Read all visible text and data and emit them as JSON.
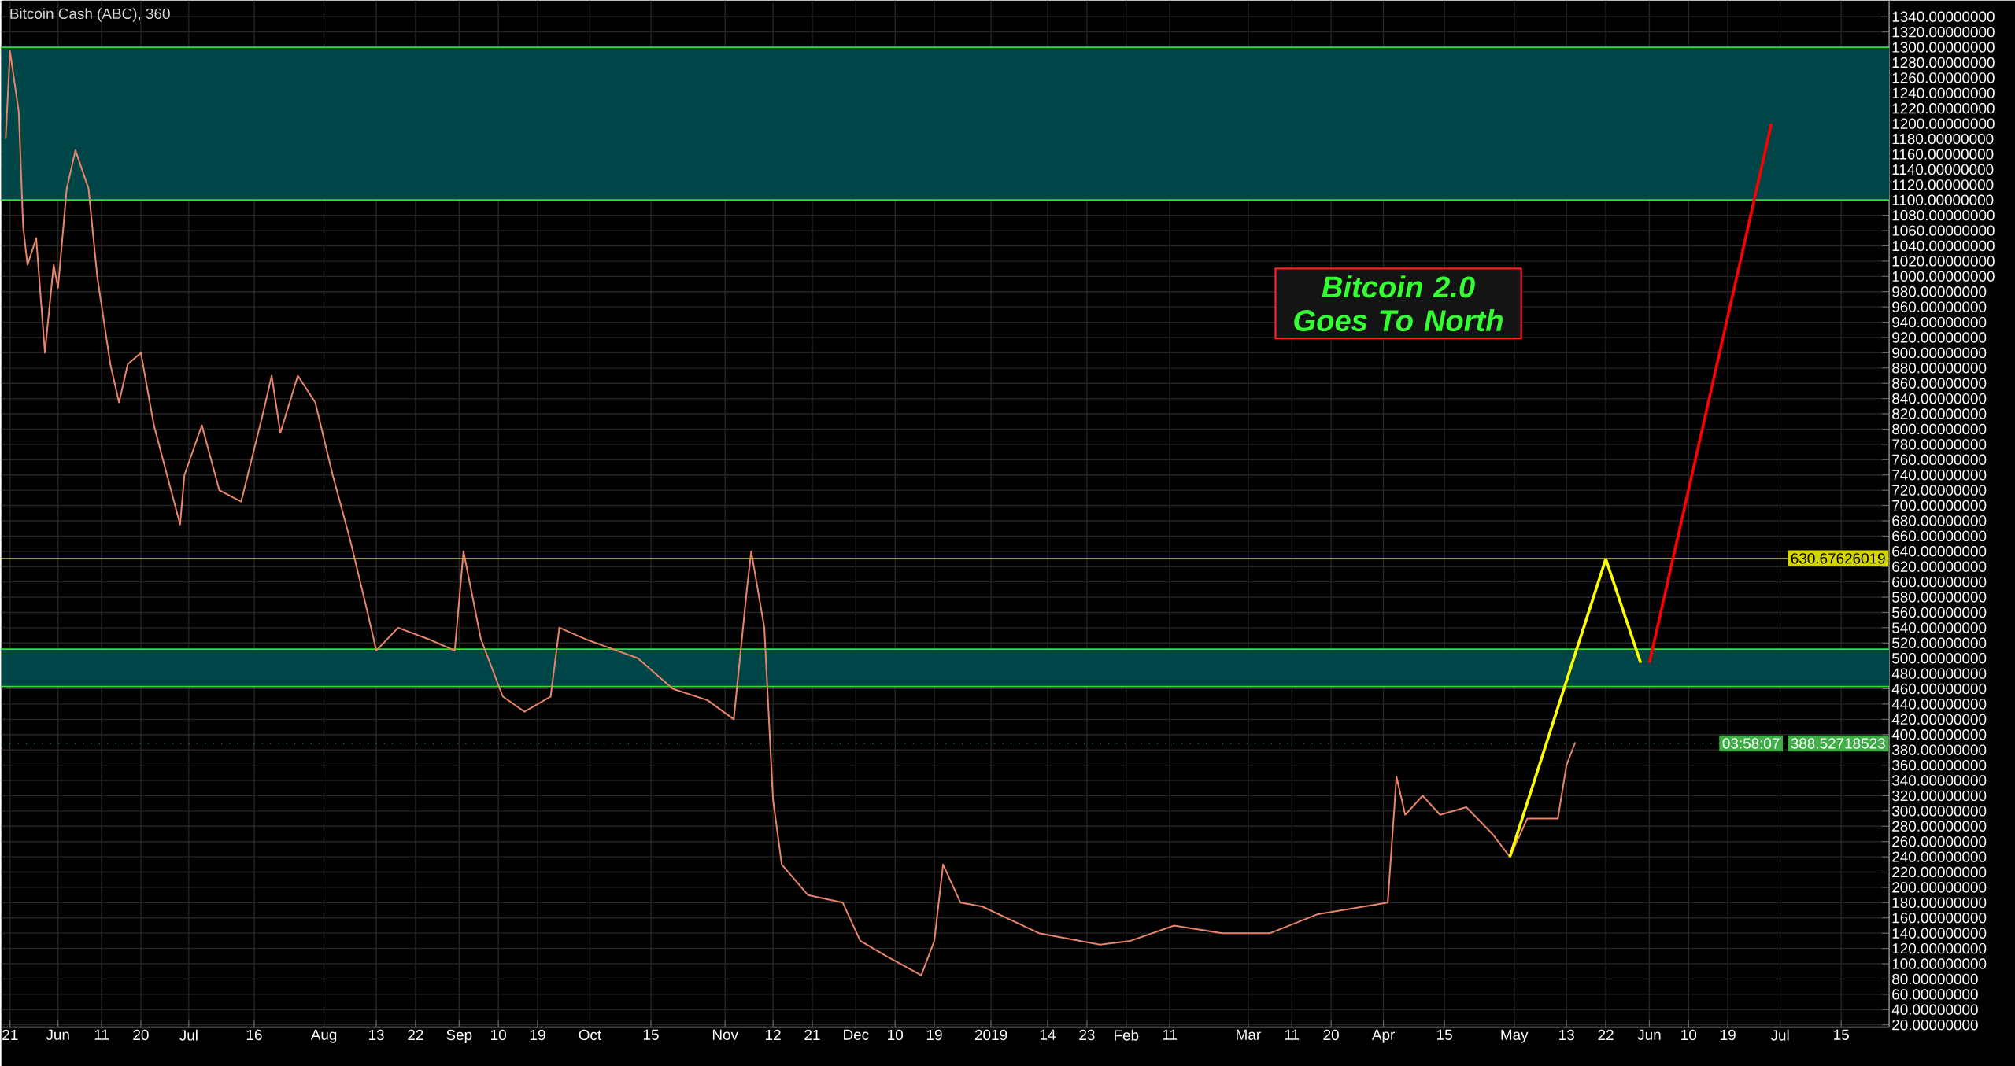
{
  "chart_data": {
    "type": "line",
    "title": "Bitcoin Cash (ABC), 360",
    "annotations": [
      "Bitcoin 2.0 Goes To North",
      "03:58:07"
    ],
    "xlim": [
      "2018-05-19",
      "2019-07-26"
    ],
    "ylim": [
      17,
      1361
    ],
    "xticks": [
      {
        "value": "2018-05-21",
        "label": "21"
      },
      {
        "value": "2018-06-01",
        "label": "Jun"
      },
      {
        "value": "2018-06-11",
        "label": "11"
      },
      {
        "value": "2018-06-20",
        "label": "20"
      },
      {
        "value": "2018-07-01",
        "label": "Jul"
      },
      {
        "value": "2018-07-16",
        "label": "16"
      },
      {
        "value": "2018-08-01",
        "label": "Aug"
      },
      {
        "value": "2018-08-13",
        "label": "13"
      },
      {
        "value": "2018-08-22",
        "label": "22"
      },
      {
        "value": "2018-09-01",
        "label": "Sep"
      },
      {
        "value": "2018-09-10",
        "label": "10"
      },
      {
        "value": "2018-09-19",
        "label": "19"
      },
      {
        "value": "2018-10-01",
        "label": "Oct"
      },
      {
        "value": "2018-10-15",
        "label": "15"
      },
      {
        "value": "2018-11-01",
        "label": "Nov"
      },
      {
        "value": "2018-11-12",
        "label": "12"
      },
      {
        "value": "2018-11-21",
        "label": "21"
      },
      {
        "value": "2018-12-01",
        "label": "Dec"
      },
      {
        "value": "2018-12-10",
        "label": "10"
      },
      {
        "value": "2018-12-19",
        "label": "19"
      },
      {
        "value": "2019-01-01",
        "label": "2019"
      },
      {
        "value": "2019-01-14",
        "label": "14"
      },
      {
        "value": "2019-01-23",
        "label": "23"
      },
      {
        "value": "2019-02-01",
        "label": "Feb"
      },
      {
        "value": "2019-02-11",
        "label": "11"
      },
      {
        "value": "2019-03-01",
        "label": "Mar"
      },
      {
        "value": "2019-03-11",
        "label": "11"
      },
      {
        "value": "2019-03-20",
        "label": "20"
      },
      {
        "value": "2019-04-01",
        "label": "Apr"
      },
      {
        "value": "2019-04-15",
        "label": "15"
      },
      {
        "value": "2019-05-01",
        "label": "May"
      },
      {
        "value": "2019-05-13",
        "label": "13"
      },
      {
        "value": "2019-05-22",
        "label": "22"
      },
      {
        "value": "2019-06-01",
        "label": "Jun"
      },
      {
        "value": "2019-06-10",
        "label": "10"
      },
      {
        "value": "2019-06-19",
        "label": "19"
      },
      {
        "value": "2019-07-01",
        "label": "Jul"
      },
      {
        "value": "2019-07-15",
        "label": "15"
      }
    ],
    "yticks": [
      {
        "value": 20,
        "label": "20.00000000"
      },
      {
        "value": 40,
        "label": "40.00000000"
      },
      {
        "value": 60,
        "label": "60.00000000"
      },
      {
        "value": 80,
        "label": "80.00000000"
      },
      {
        "value": 100,
        "label": "100.00000000"
      },
      {
        "value": 120,
        "label": "120.00000000"
      },
      {
        "value": 140,
        "label": "140.00000000"
      },
      {
        "value": 160,
        "label": "160.00000000"
      },
      {
        "value": 180,
        "label": "180.00000000"
      },
      {
        "value": 200,
        "label": "200.00000000"
      },
      {
        "value": 220,
        "label": "220.00000000"
      },
      {
        "value": 240,
        "label": "240.00000000"
      },
      {
        "value": 260,
        "label": "260.00000000"
      },
      {
        "value": 280,
        "label": "280.00000000"
      },
      {
        "value": 300,
        "label": "300.00000000"
      },
      {
        "value": 320,
        "label": "320.00000000"
      },
      {
        "value": 340,
        "label": "340.00000000"
      },
      {
        "value": 360,
        "label": "360.00000000"
      },
      {
        "value": 380,
        "label": "380.00000000"
      },
      {
        "value": 400,
        "label": "400.00000000"
      },
      {
        "value": 420,
        "label": "420.00000000"
      },
      {
        "value": 440,
        "label": "440.00000000"
      },
      {
        "value": 460,
        "label": "460.00000000"
      },
      {
        "value": 480,
        "label": "480.00000000"
      },
      {
        "value": 500,
        "label": "500.00000000"
      },
      {
        "value": 520,
        "label": "520.00000000"
      },
      {
        "value": 540,
        "label": "540.00000000"
      },
      {
        "value": 560,
        "label": "560.00000000"
      },
      {
        "value": 580,
        "label": "580.00000000"
      },
      {
        "value": 600,
        "label": "600.00000000"
      },
      {
        "value": 620,
        "label": "620.00000000"
      },
      {
        "value": 640,
        "label": "640.00000000"
      },
      {
        "value": 660,
        "label": "660.00000000"
      },
      {
        "value": 680,
        "label": "680.00000000"
      },
      {
        "value": 700,
        "label": "700.00000000"
      },
      {
        "value": 720,
        "label": "720.00000000"
      },
      {
        "value": 740,
        "label": "740.00000000"
      },
      {
        "value": 760,
        "label": "760.00000000"
      },
      {
        "value": 780,
        "label": "780.00000000"
      },
      {
        "value": 800,
        "label": "800.00000000"
      },
      {
        "value": 820,
        "label": "820.00000000"
      },
      {
        "value": 840,
        "label": "840.00000000"
      },
      {
        "value": 860,
        "label": "860.00000000"
      },
      {
        "value": 880,
        "label": "880.00000000"
      },
      {
        "value": 900,
        "label": "900.00000000"
      },
      {
        "value": 920,
        "label": "920.00000000"
      },
      {
        "value": 940,
        "label": "940.00000000"
      },
      {
        "value": 960,
        "label": "960.00000000"
      },
      {
        "value": 980,
        "label": "980.00000000"
      },
      {
        "value": 1000,
        "label": "1000.00000000"
      },
      {
        "value": 1020,
        "label": "1020.00000000"
      },
      {
        "value": 1040,
        "label": "1040.00000000"
      },
      {
        "value": 1060,
        "label": "1060.00000000"
      },
      {
        "value": 1080,
        "label": "1080.00000000"
      },
      {
        "value": 1100,
        "label": "1100.00000000"
      },
      {
        "value": 1120,
        "label": "1120.00000000"
      },
      {
        "value": 1140,
        "label": "1140.00000000"
      },
      {
        "value": 1160,
        "label": "1160.00000000"
      },
      {
        "value": 1180,
        "label": "1180.00000000"
      },
      {
        "value": 1200,
        "label": "1200.00000000"
      },
      {
        "value": 1220,
        "label": "1220.00000000"
      },
      {
        "value": 1240,
        "label": "1240.00000000"
      },
      {
        "value": 1260,
        "label": "1260.00000000"
      },
      {
        "value": 1280,
        "label": "1280.00000000"
      },
      {
        "value": 1300,
        "label": "1300.00000000"
      },
      {
        "value": 1320,
        "label": "1320.00000000"
      },
      {
        "value": 1340,
        "label": "1340.00000000"
      }
    ],
    "grid": true,
    "bands": [
      {
        "axis": "y",
        "from": 1100,
        "to": 1300,
        "color": "#004548"
      },
      {
        "axis": "y",
        "from": 463,
        "to": 512,
        "color": "#004548"
      }
    ],
    "ref_lines": [
      {
        "axis": "y",
        "value": 630.67626019,
        "label": "630.67626019",
        "color": "#d4d400"
      },
      {
        "axis": "y",
        "value": 388.52718523,
        "label": "388.52718523",
        "color": "#3fae49",
        "line_style": "dotted"
      }
    ],
    "series": [
      {
        "color": "#e8846a",
        "x": [
          "2018-05-20",
          "2018-05-21",
          "2018-05-23",
          "2018-05-24",
          "2018-05-25",
          "2018-05-27",
          "2018-05-29",
          "2018-05-31",
          "2018-06-01",
          "2018-06-03",
          "2018-06-05",
          "2018-06-08",
          "2018-06-10",
          "2018-06-13",
          "2018-06-15",
          "2018-06-17",
          "2018-06-20",
          "2018-06-23",
          "2018-06-26",
          "2018-06-29",
          "2018-06-30",
          "2018-07-04",
          "2018-07-08",
          "2018-07-13",
          "2018-07-18",
          "2018-07-20",
          "2018-07-22",
          "2018-07-26",
          "2018-07-30",
          "2018-08-03",
          "2018-08-07",
          "2018-08-11",
          "2018-08-13",
          "2018-08-18",
          "2018-08-25",
          "2018-08-31",
          "2018-09-02",
          "2018-09-06",
          "2018-09-11",
          "2018-09-16",
          "2018-09-22",
          "2018-09-24",
          "2018-09-30",
          "2018-10-12",
          "2018-10-20",
          "2018-10-28",
          "2018-11-03",
          "2018-11-06",
          "2018-11-07",
          "2018-11-10",
          "2018-11-12",
          "2018-11-14",
          "2018-11-20",
          "2018-11-28",
          "2018-12-02",
          "2018-12-08",
          "2018-12-16",
          "2018-12-19",
          "2018-12-21",
          "2018-12-25",
          "2018-12-30",
          "2019-01-12",
          "2019-01-26",
          "2019-02-02",
          "2019-02-12",
          "2019-02-23",
          "2019-03-06",
          "2019-03-17",
          "2019-04-02",
          "2019-04-04",
          "2019-04-06",
          "2019-04-10",
          "2019-04-14",
          "2019-04-20",
          "2019-04-26",
          "2019-04-30",
          "2019-05-04",
          "2019-05-11",
          "2019-05-13",
          "2019-05-15"
        ],
        "values": [
          1180,
          1295,
          1215,
          1065,
          1015,
          1050,
          900,
          1015,
          985,
          1115,
          1165,
          1115,
          1000,
          885,
          835,
          885,
          900,
          805,
          740,
          675,
          740,
          805,
          720,
          705,
          820,
          870,
          795,
          870,
          835,
          740,
          655,
          560,
          510,
          540,
          525,
          510,
          640,
          525,
          450,
          430,
          450,
          540,
          525,
          500,
          460,
          445,
          420,
          590,
          640,
          540,
          315,
          230,
          190,
          180,
          130,
          110,
          85,
          130,
          230,
          180,
          175,
          140,
          125,
          130,
          150,
          140,
          140,
          165,
          180,
          345,
          295,
          320,
          295,
          305,
          270,
          240,
          290,
          290,
          360,
          390
        ]
      },
      {
        "color": "#ffff00",
        "x": [
          "2019-04-30",
          "2019-05-22"
        ],
        "values": [
          240,
          630
        ]
      },
      {
        "color": "#ffff00",
        "x": [
          "2019-05-22",
          "2019-05-30"
        ],
        "values": [
          630,
          494
        ]
      },
      {
        "color": "#ff0000",
        "x": [
          "2019-06-01",
          "2019-06-29"
        ],
        "values": [
          494,
          1200
        ]
      }
    ]
  }
}
